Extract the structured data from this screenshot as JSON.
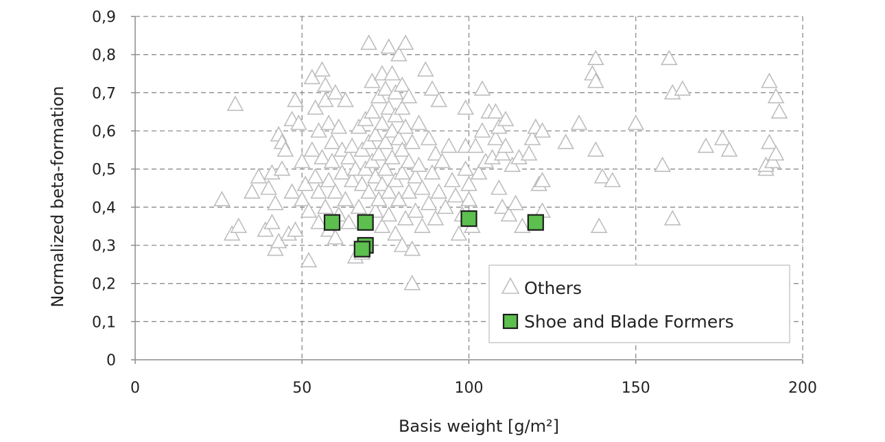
{
  "chart_data": {
    "type": "scatter",
    "xlabel": "Basis weight [g/m²]",
    "ylabel": "Normalized beta-formation",
    "xlim": [
      0,
      200
    ],
    "ylim": [
      0,
      0.9
    ],
    "x_ticks": [
      0,
      50,
      100,
      150,
      200
    ],
    "x_tick_labels": [
      "0",
      "50",
      "100",
      "150",
      "200"
    ],
    "y_ticks": [
      0,
      0.1,
      0.2,
      0.3,
      0.4,
      0.5,
      0.6,
      0.7,
      0.8,
      0.9
    ],
    "y_tick_labels": [
      "0",
      "0,1",
      "0,2",
      "0,3",
      "0,4",
      "0,5",
      "0,6",
      "0,7",
      "0,8",
      "0,9"
    ],
    "grid": true,
    "legend_position": "bottom-right",
    "colors": {
      "others": "#bdbdbd",
      "shoe_blade": "#5cbf4e"
    },
    "series": [
      {
        "name": "Others",
        "marker": "triangle",
        "points": [
          [
            26,
            0.42
          ],
          [
            29,
            0.33
          ],
          [
            30,
            0.67
          ],
          [
            31,
            0.35
          ],
          [
            35,
            0.44
          ],
          [
            37,
            0.48
          ],
          [
            39,
            0.34
          ],
          [
            40,
            0.45
          ],
          [
            41,
            0.49
          ],
          [
            41,
            0.36
          ],
          [
            42,
            0.29
          ],
          [
            42,
            0.41
          ],
          [
            43,
            0.31
          ],
          [
            43,
            0.59
          ],
          [
            44,
            0.57
          ],
          [
            44,
            0.5
          ],
          [
            45,
            0.55
          ],
          [
            46,
            0.33
          ],
          [
            47,
            0.44
          ],
          [
            47,
            0.63
          ],
          [
            48,
            0.68
          ],
          [
            48,
            0.34
          ],
          [
            49,
            0.62
          ],
          [
            50,
            0.52
          ],
          [
            50,
            0.42
          ],
          [
            51,
            0.46
          ],
          [
            52,
            0.39
          ],
          [
            52,
            0.26
          ],
          [
            53,
            0.74
          ],
          [
            53,
            0.55
          ],
          [
            54,
            0.66
          ],
          [
            54,
            0.48
          ],
          [
            55,
            0.36
          ],
          [
            55,
            0.6
          ],
          [
            55,
            0.44
          ],
          [
            56,
            0.76
          ],
          [
            56,
            0.53
          ],
          [
            57,
            0.72
          ],
          [
            57,
            0.68
          ],
          [
            57,
            0.4
          ],
          [
            58,
            0.62
          ],
          [
            58,
            0.47
          ],
          [
            58,
            0.34
          ],
          [
            59,
            0.52
          ],
          [
            59,
            0.57
          ],
          [
            60,
            0.7
          ],
          [
            60,
            0.44
          ],
          [
            60,
            0.32
          ],
          [
            61,
            0.61
          ],
          [
            61,
            0.38
          ],
          [
            62,
            0.49
          ],
          [
            62,
            0.55
          ],
          [
            63,
            0.68
          ],
          [
            63,
            0.42
          ],
          [
            64,
            0.53
          ],
          [
            64,
            0.36
          ],
          [
            65,
            0.47
          ],
          [
            65,
            0.56
          ],
          [
            66,
            0.27
          ],
          [
            66,
            0.5
          ],
          [
            67,
            0.61
          ],
          [
            67,
            0.4
          ],
          [
            68,
            0.46
          ],
          [
            68,
            0.55
          ],
          [
            68,
            0.28
          ],
          [
            69,
            0.63
          ],
          [
            69,
            0.5
          ],
          [
            69,
            0.36
          ],
          [
            70,
            0.83
          ],
          [
            70,
            0.57
          ],
          [
            70,
            0.44
          ],
          [
            71,
            0.73
          ],
          [
            71,
            0.65
          ],
          [
            71,
            0.52
          ],
          [
            72,
            0.48
          ],
          [
            72,
            0.39
          ],
          [
            72,
            0.59
          ],
          [
            73,
            0.69
          ],
          [
            73,
            0.54
          ],
          [
            73,
            0.42
          ],
          [
            74,
            0.75
          ],
          [
            74,
            0.62
          ],
          [
            74,
            0.46
          ],
          [
            74,
            0.35
          ],
          [
            75,
            0.71
          ],
          [
            75,
            0.57
          ],
          [
            75,
            0.5
          ],
          [
            76,
            0.82
          ],
          [
            76,
            0.66
          ],
          [
            76,
            0.44
          ],
          [
            76,
            0.38
          ],
          [
            77,
            0.75
          ],
          [
            77,
            0.6
          ],
          [
            77,
            0.53
          ],
          [
            78,
            0.7
          ],
          [
            78,
            0.64
          ],
          [
            78,
            0.47
          ],
          [
            78,
            0.33
          ],
          [
            79,
            0.8
          ],
          [
            79,
            0.58
          ],
          [
            79,
            0.42
          ],
          [
            80,
            0.72
          ],
          [
            80,
            0.66
          ],
          [
            80,
            0.55
          ],
          [
            80,
            0.49
          ],
          [
            80,
            0.3
          ],
          [
            81,
            0.83
          ],
          [
            81,
            0.61
          ],
          [
            81,
            0.37
          ],
          [
            82,
            0.69
          ],
          [
            82,
            0.52
          ],
          [
            82,
            0.44
          ],
          [
            83,
            0.2
          ],
          [
            83,
            0.29
          ],
          [
            83,
            0.57
          ],
          [
            84,
            0.48
          ],
          [
            84,
            0.39
          ],
          [
            85,
            0.62
          ],
          [
            85,
            0.51
          ],
          [
            86,
            0.45
          ],
          [
            86,
            0.35
          ],
          [
            87,
            0.76
          ],
          [
            88,
            0.58
          ],
          [
            88,
            0.41
          ],
          [
            89,
            0.71
          ],
          [
            89,
            0.49
          ],
          [
            90,
            0.54
          ],
          [
            90,
            0.37
          ],
          [
            91,
            0.68
          ],
          [
            91,
            0.44
          ],
          [
            92,
            0.52
          ],
          [
            93,
            0.4
          ],
          [
            94,
            0.56
          ],
          [
            95,
            0.47
          ],
          [
            96,
            0.43
          ],
          [
            97,
            0.33
          ],
          [
            98,
            0.38
          ],
          [
            99,
            0.66
          ],
          [
            99,
            0.5
          ],
          [
            99,
            0.56
          ],
          [
            100,
            0.46
          ],
          [
            100,
            0.42
          ],
          [
            101,
            0.35
          ],
          [
            102,
            0.56
          ],
          [
            103,
            0.49
          ],
          [
            104,
            0.71
          ],
          [
            104,
            0.6
          ],
          [
            105,
            0.52
          ],
          [
            106,
            0.65
          ],
          [
            107,
            0.53
          ],
          [
            108,
            0.65
          ],
          [
            108,
            0.58
          ],
          [
            109,
            0.61
          ],
          [
            109,
            0.45
          ],
          [
            110,
            0.54
          ],
          [
            110,
            0.4
          ],
          [
            111,
            0.56
          ],
          [
            111,
            0.63
          ],
          [
            112,
            0.38
          ],
          [
            113,
            0.51
          ],
          [
            114,
            0.41
          ],
          [
            115,
            0.53
          ],
          [
            116,
            0.35
          ],
          [
            118,
            0.54
          ],
          [
            119,
            0.58
          ],
          [
            120,
            0.61
          ],
          [
            121,
            0.46
          ],
          [
            122,
            0.47
          ],
          [
            122,
            0.39
          ],
          [
            122,
            0.6
          ],
          [
            129,
            0.57
          ],
          [
            133,
            0.62
          ],
          [
            137,
            0.75
          ],
          [
            138,
            0.79
          ],
          [
            138,
            0.73
          ],
          [
            138,
            0.55
          ],
          [
            139,
            0.35
          ],
          [
            140,
            0.48
          ],
          [
            143,
            0.47
          ],
          [
            150,
            0.62
          ],
          [
            158,
            0.51
          ],
          [
            160,
            0.79
          ],
          [
            161,
            0.7
          ],
          [
            161,
            0.37
          ],
          [
            164,
            0.71
          ],
          [
            171,
            0.56
          ],
          [
            176,
            0.58
          ],
          [
            178,
            0.55
          ],
          [
            189,
            0.5
          ],
          [
            189,
            0.51
          ],
          [
            190,
            0.73
          ],
          [
            190,
            0.57
          ],
          [
            191,
            0.52
          ],
          [
            192,
            0.54
          ],
          [
            192,
            0.69
          ],
          [
            193,
            0.65
          ]
        ]
      },
      {
        "name": "Shoe and Blade Formers",
        "marker": "square",
        "points": [
          [
            59,
            0.36
          ],
          [
            69,
            0.36
          ],
          [
            69,
            0.3
          ],
          [
            68,
            0.29
          ],
          [
            100,
            0.37
          ],
          [
            120,
            0.36
          ]
        ]
      }
    ]
  }
}
